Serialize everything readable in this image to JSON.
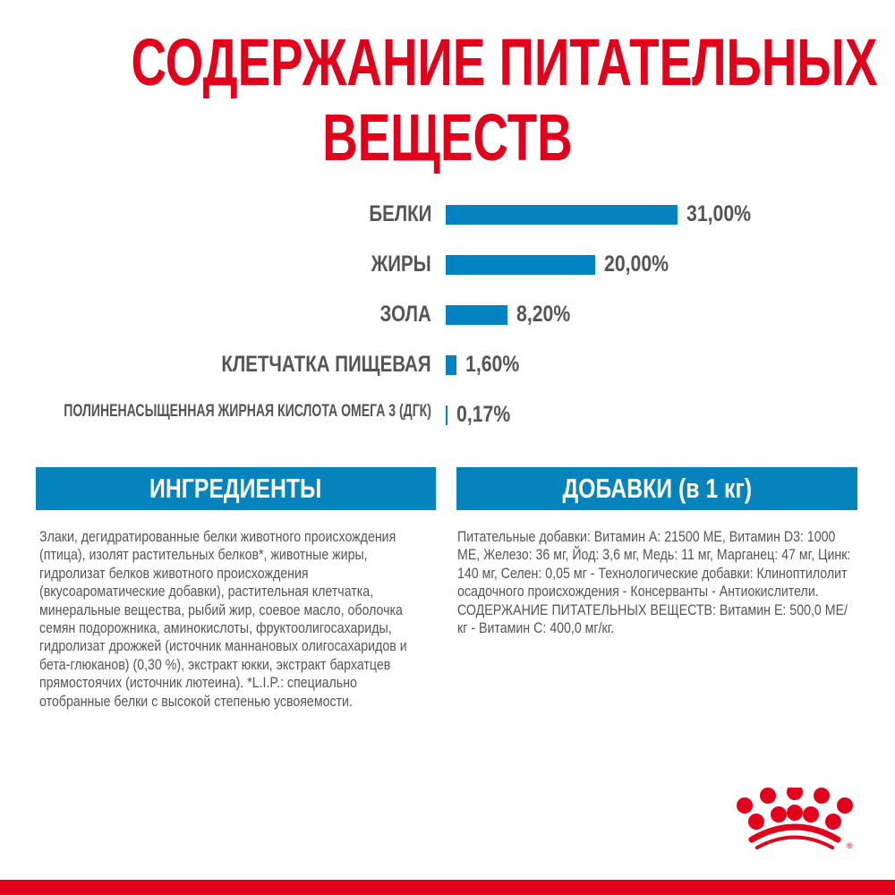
{
  "title_lines": [
    "СОДЕРЖАНИЕ ПИТАТЕЛЬНЫХ",
    "ВЕЩЕСТВ"
  ],
  "colors": {
    "title_red": "#e2001a",
    "bar_blue": "#0083c0",
    "text_gray": "#555555"
  },
  "chart_data": {
    "type": "bar",
    "orientation": "horizontal",
    "categories": [
      "БЕЛКИ",
      "ЖИРЫ",
      "ЗОЛА",
      "КЛЕТЧАТКА ПИЩЕВАЯ",
      "ПОЛИНЕНАСЫЩЕННАЯ ЖИРНАЯ КИСЛОТА ОМЕГА 3 (ДГК)"
    ],
    "values": [
      31.0,
      20.0,
      8.2,
      1.6,
      0.17
    ],
    "value_labels": [
      "31,00%",
      "20,00%",
      "8,20%",
      "1,60%",
      "0,17%"
    ],
    "unit": "%",
    "grid": false
  },
  "ingredients": {
    "header": "ИНГРЕДИЕНТЫ",
    "text": "Злаки, дегидратированные белки животного происхождения (птица), изолят растительных белков*, животные жиры, гидролизат белков животного происхождения (вкусоароматические добавки), растительная клетчатка, минеральные вещества, рыбий жир, соевое масло, оболочка семян подорожника, аминокислоты, фруктоолигосахариды, гидролизат дрожжей (источник маннановых олигосахаридов и бета-глюканов) (0,30 %), экстракт юкки, экстракт бархатцев прямостоячих (источник лютеина). *L.I.P.: специально отобранные белки с высокой степенью усвояемости."
  },
  "additives": {
    "header": "ДОБАВКИ (в 1 кг)",
    "text": "Питательные добавки: Витамин А: 21500 МЕ, Витамин D3: 1000 МЕ, Железо: 36 мг, Йод: 3,6 мг, Медь: 11 мг, Марганец: 47 мг, Цинк: 140 мг, Селен: 0,05 мг - Технологические добавки: Клиноптилолит осадочного происхождения - Консерванты - Антиокислители. СОДЕРЖАНИЕ ПИТАТЕЛЬНЫХ ВЕЩЕСТВ: Витамин Е: 500,0 МЕ/кг - Витамин С: 400,0 мг/кг."
  },
  "logo": {
    "icon": "royal-canin-crown-icon",
    "mark": "®"
  }
}
